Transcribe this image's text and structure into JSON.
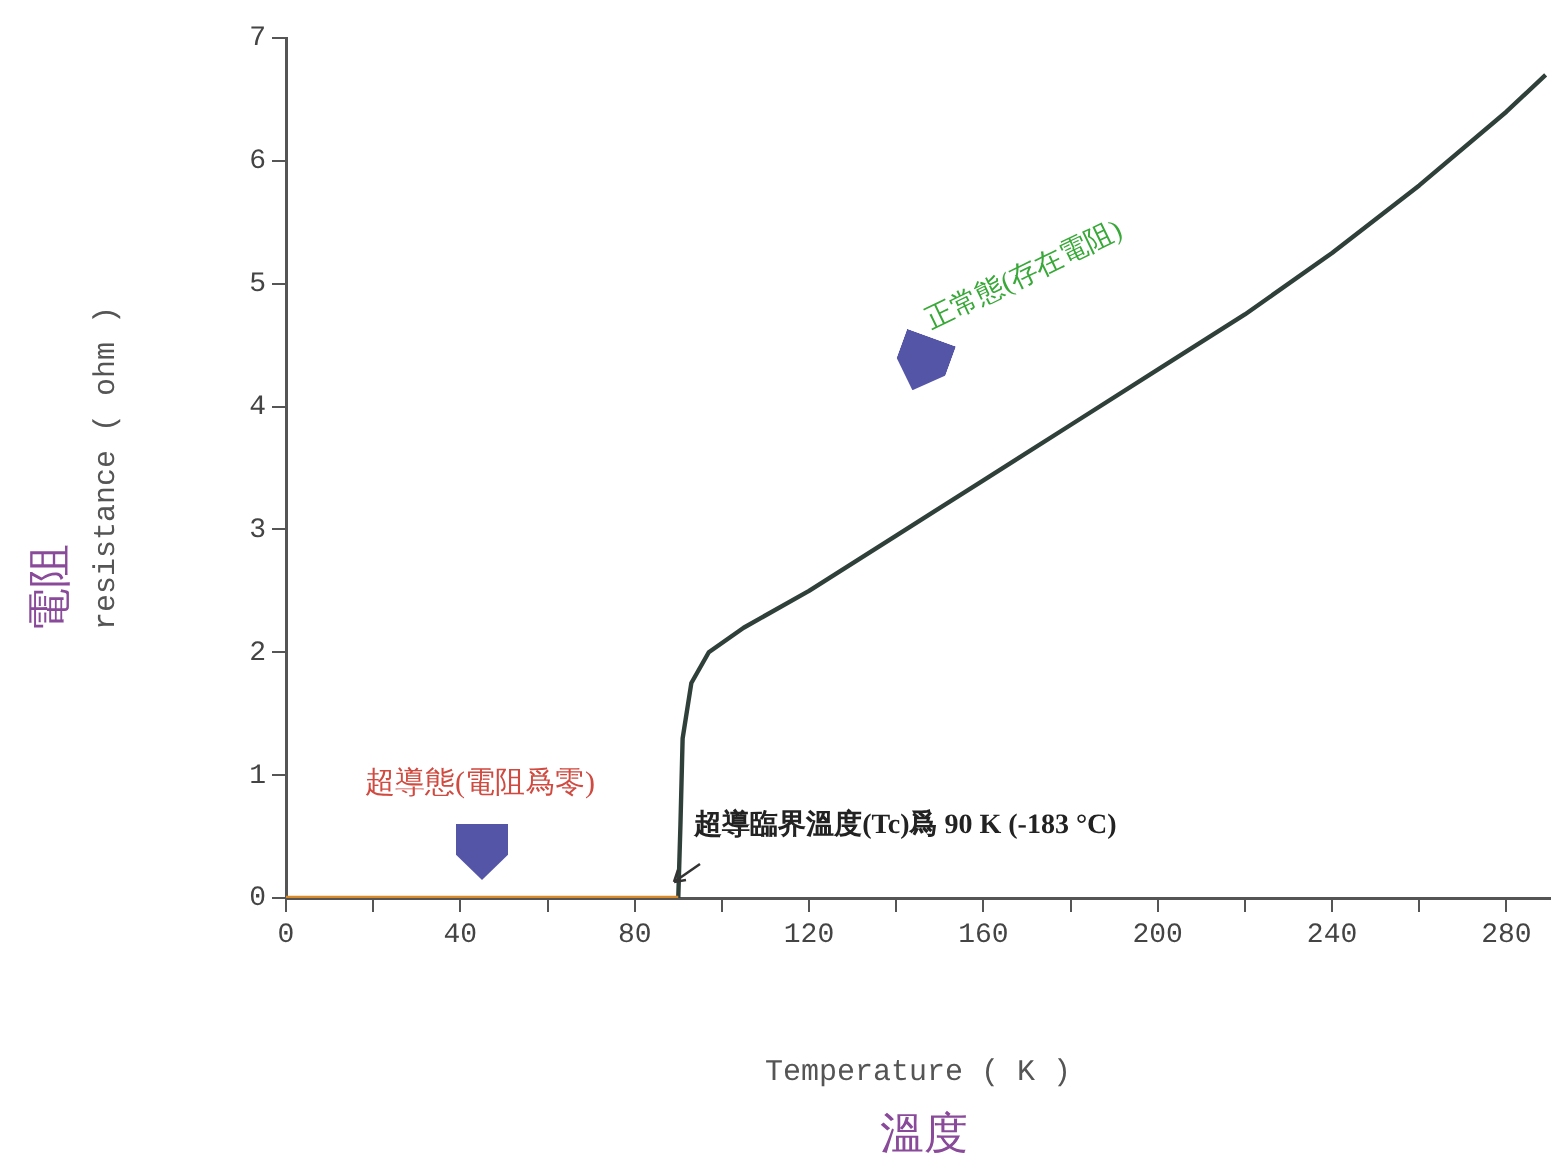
{
  "chart_data": {
    "type": "line",
    "xlabel": "Temperature ( K )",
    "ylabel": "resistance ( ohm )",
    "xlim": [
      0,
      290
    ],
    "ylim": [
      0,
      7
    ],
    "xticks": [
      0,
      {
        "value": 20,
        "label": null
      },
      40,
      {
        "value": 60,
        "label": null
      },
      80,
      {
        "value": 100,
        "label": null
      },
      120,
      {
        "value": 140,
        "label": null
      },
      160,
      {
        "value": 180,
        "label": null
      },
      200,
      {
        "value": 220,
        "label": null
      },
      240,
      {
        "value": 260,
        "label": null
      },
      280
    ],
    "yticks": [
      0,
      1,
      2,
      3,
      4,
      5,
      6,
      7
    ],
    "grid": false,
    "legend": false,
    "marker": "none",
    "line_style": "solid",
    "series": [
      {
        "color": "#d98a2b",
        "x": [
          0,
          90
        ],
        "values": [
          0,
          0
        ]
      },
      {
        "color": "#2f3f3a",
        "x": [
          90,
          90.5,
          91,
          93,
          97,
          105,
          120,
          140,
          160,
          180,
          200,
          220,
          240,
          260,
          280,
          289
        ],
        "values": [
          0,
          0.6,
          1.3,
          1.75,
          2.0,
          2.2,
          2.5,
          2.95,
          3.4,
          3.85,
          4.3,
          4.75,
          5.25,
          5.8,
          6.4,
          6.7
        ]
      }
    ],
    "annotations": [
      "電阻",
      "溫度",
      "超導態(電阻爲零)",
      {
        "text": "超導臨界溫度(Tc)爲 90 K (-183 °C)",
        "x": 90,
        "y": 0
      },
      "正常態(存在電阻)"
    ]
  }
}
